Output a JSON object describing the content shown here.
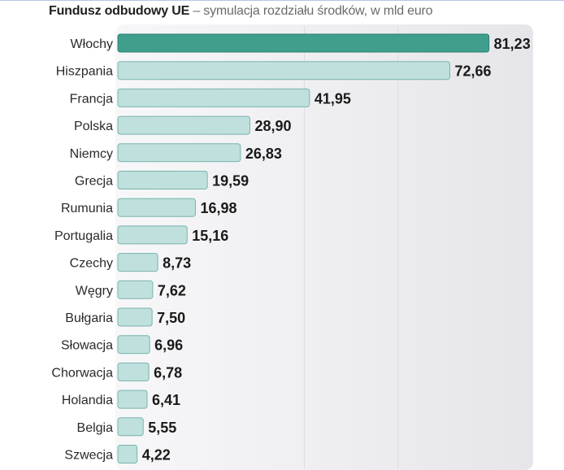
{
  "title": {
    "bold": "Fundusz odbudowy UE",
    "rest": " – symulacja rozdziału środków,  w mld euro"
  },
  "colors": {
    "highlight_bar": "#3f9e8c",
    "bar": "#bfe0dd",
    "bar_border": "#7ab3ad",
    "panel": "#ececef"
  },
  "chart_data": {
    "type": "bar",
    "orientation": "horizontal",
    "title": "Fundusz odbudowy UE – symulacja rozdziału środków, w mld euro",
    "unit": "mld euro",
    "xlim": [
      0,
      82
    ],
    "grid": true,
    "categories": [
      "Włochy",
      "Hiszpania",
      "Francja",
      "Polska",
      "Niemcy",
      "Grecja",
      "Rumunia",
      "Portugalia",
      "Czechy",
      "Węgry",
      "Bułgaria",
      "Słowacja",
      "Chorwacja",
      "Holandia",
      "Belgia",
      "Szwecja"
    ],
    "values": [
      81.23,
      72.66,
      41.95,
      28.9,
      26.83,
      19.59,
      16.98,
      15.16,
      8.73,
      7.62,
      7.5,
      6.96,
      6.78,
      6.41,
      5.55,
      4.22
    ],
    "value_labels": [
      "81,23",
      "72,66",
      "41,95",
      "28,90",
      "26,83",
      "19,59",
      "16,98",
      "15,16",
      "8,73",
      "7,62",
      "7,50",
      "6,96",
      "6,78",
      "6,41",
      "5,55",
      "4,22"
    ],
    "highlight": "Włochy"
  }
}
